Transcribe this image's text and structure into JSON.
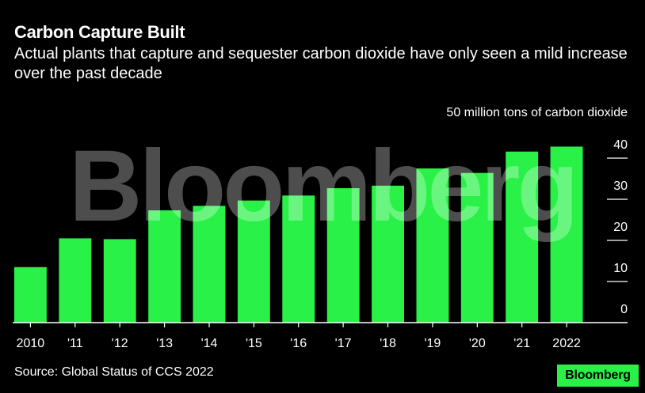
{
  "header": {
    "title": "Carbon Capture Built",
    "subtitle": "Actual plants that capture and sequester carbon dioxide have only seen a mild increase over the past decade"
  },
  "footer": {
    "source": "Source: Global Status of CCS 2022",
    "brand": "Bloomberg"
  },
  "watermark": "Bloomberg",
  "colors": {
    "bar": "#29f148",
    "background": "#000000",
    "axis": "#ffffff"
  },
  "chart_data": {
    "type": "bar",
    "title": "Carbon Capture Built",
    "subtitle": "Actual plants that capture and sequester carbon dioxide have only seen a mild increase over the past decade",
    "unit_label": "50 million tons of carbon dioxide",
    "categories": [
      "2010",
      "'11",
      "'12",
      "'13",
      "'14",
      "'15",
      "'16",
      "'17",
      "'18",
      "'19",
      "'20",
      "'21",
      "2022"
    ],
    "values": [
      13.5,
      20.5,
      20.3,
      27.3,
      28.4,
      29.7,
      30.9,
      32.7,
      33.3,
      37.5,
      36.4,
      41.6,
      42.8
    ],
    "ylim": [
      0,
      50
    ],
    "yticks": [
      0,
      10,
      20,
      30,
      40
    ],
    "y_axis_position": "right",
    "grid": false,
    "legend": "none"
  }
}
